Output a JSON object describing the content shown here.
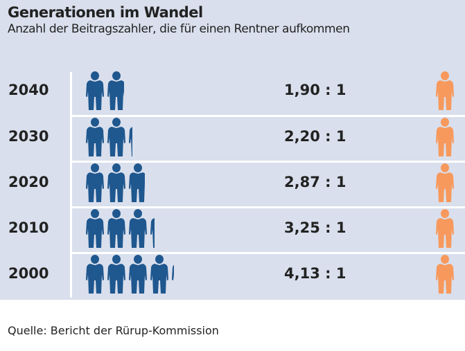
{
  "chart_data": {
    "type": "pictogram",
    "title": "Generationen im Wandel",
    "subtitle": "Anzahl der Beitragszahler, die für einen Rentner aufkommen",
    "categories": [
      "2040",
      "2030",
      "2020",
      "2010",
      "2000"
    ],
    "values": [
      1.9,
      2.2,
      2.87,
      3.25,
      4.13
    ],
    "labels": [
      "1,90 : 1",
      "2,20 : 1",
      "2,87 : 1",
      "3,25 : 1",
      "4,13 : 1"
    ],
    "colors": {
      "contributor": "#1f578f",
      "retiree": "#f7995c",
      "background": "#d9dfec"
    }
  },
  "source": "Quelle: Bericht der Rürup-Kommission"
}
